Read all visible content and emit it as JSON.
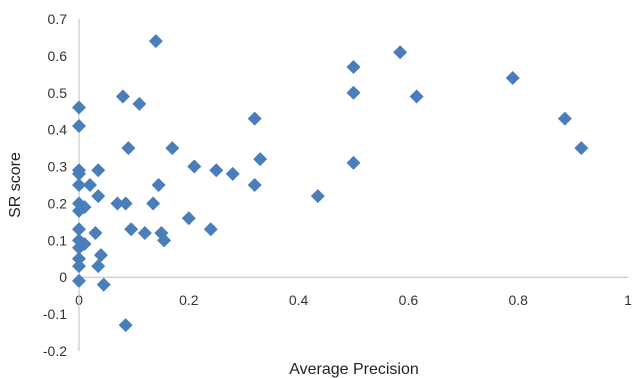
{
  "chart_data": {
    "type": "scatter",
    "title": "",
    "xlabel": "Average Precision",
    "ylabel": "SR score",
    "xlim": [
      0,
      1
    ],
    "ylim": [
      -0.2,
      0.7
    ],
    "grid": false,
    "legend": "none",
    "marker": "diamond",
    "marker_color": "#4a7ebb",
    "x_ticks": [
      "0",
      "0.2",
      "0.4",
      "0.6",
      "0.8",
      "1"
    ],
    "y_ticks": [
      "0.7",
      "0.6",
      "0.5",
      "0.4",
      "0.3",
      "0.2",
      "0.1",
      "0",
      "-0.1",
      "-0.2"
    ],
    "series": [
      {
        "points": [
          {
            "x": 0.0,
            "y": 0.46
          },
          {
            "x": 0.0,
            "y": 0.41
          },
          {
            "x": 0.0,
            "y": 0.29
          },
          {
            "x": 0.0,
            "y": 0.28
          },
          {
            "x": 0.0,
            "y": 0.25
          },
          {
            "x": 0.0,
            "y": 0.2
          },
          {
            "x": 0.0,
            "y": 0.18
          },
          {
            "x": 0.0,
            "y": 0.13
          },
          {
            "x": 0.0,
            "y": 0.1
          },
          {
            "x": 0.0,
            "y": 0.08
          },
          {
            "x": 0.0,
            "y": 0.05
          },
          {
            "x": 0.0,
            "y": 0.03
          },
          {
            "x": 0.0,
            "y": -0.01
          },
          {
            "x": 0.01,
            "y": 0.19
          },
          {
            "x": 0.01,
            "y": 0.09
          },
          {
            "x": 0.02,
            "y": 0.25
          },
          {
            "x": 0.03,
            "y": 0.12
          },
          {
            "x": 0.035,
            "y": 0.29
          },
          {
            "x": 0.035,
            "y": 0.22
          },
          {
            "x": 0.035,
            "y": 0.03
          },
          {
            "x": 0.04,
            "y": 0.06
          },
          {
            "x": 0.045,
            "y": -0.02
          },
          {
            "x": 0.07,
            "y": 0.2
          },
          {
            "x": 0.08,
            "y": 0.49
          },
          {
            "x": 0.085,
            "y": 0.2
          },
          {
            "x": 0.085,
            "y": -0.13
          },
          {
            "x": 0.09,
            "y": 0.35
          },
          {
            "x": 0.095,
            "y": 0.13
          },
          {
            "x": 0.11,
            "y": 0.47
          },
          {
            "x": 0.12,
            "y": 0.12
          },
          {
            "x": 0.135,
            "y": 0.2
          },
          {
            "x": 0.14,
            "y": 0.64
          },
          {
            "x": 0.145,
            "y": 0.25
          },
          {
            "x": 0.15,
            "y": 0.12
          },
          {
            "x": 0.155,
            "y": 0.1
          },
          {
            "x": 0.17,
            "y": 0.35
          },
          {
            "x": 0.2,
            "y": 0.16
          },
          {
            "x": 0.21,
            "y": 0.3
          },
          {
            "x": 0.24,
            "y": 0.13
          },
          {
            "x": 0.25,
            "y": 0.29
          },
          {
            "x": 0.28,
            "y": 0.28
          },
          {
            "x": 0.32,
            "y": 0.43
          },
          {
            "x": 0.32,
            "y": 0.25
          },
          {
            "x": 0.33,
            "y": 0.32
          },
          {
            "x": 0.435,
            "y": 0.22
          },
          {
            "x": 0.5,
            "y": 0.57
          },
          {
            "x": 0.5,
            "y": 0.5
          },
          {
            "x": 0.5,
            "y": 0.31
          },
          {
            "x": 0.585,
            "y": 0.61
          },
          {
            "x": 0.615,
            "y": 0.49
          },
          {
            "x": 0.79,
            "y": 0.54
          },
          {
            "x": 0.885,
            "y": 0.43
          },
          {
            "x": 0.915,
            "y": 0.35
          }
        ]
      }
    ]
  }
}
